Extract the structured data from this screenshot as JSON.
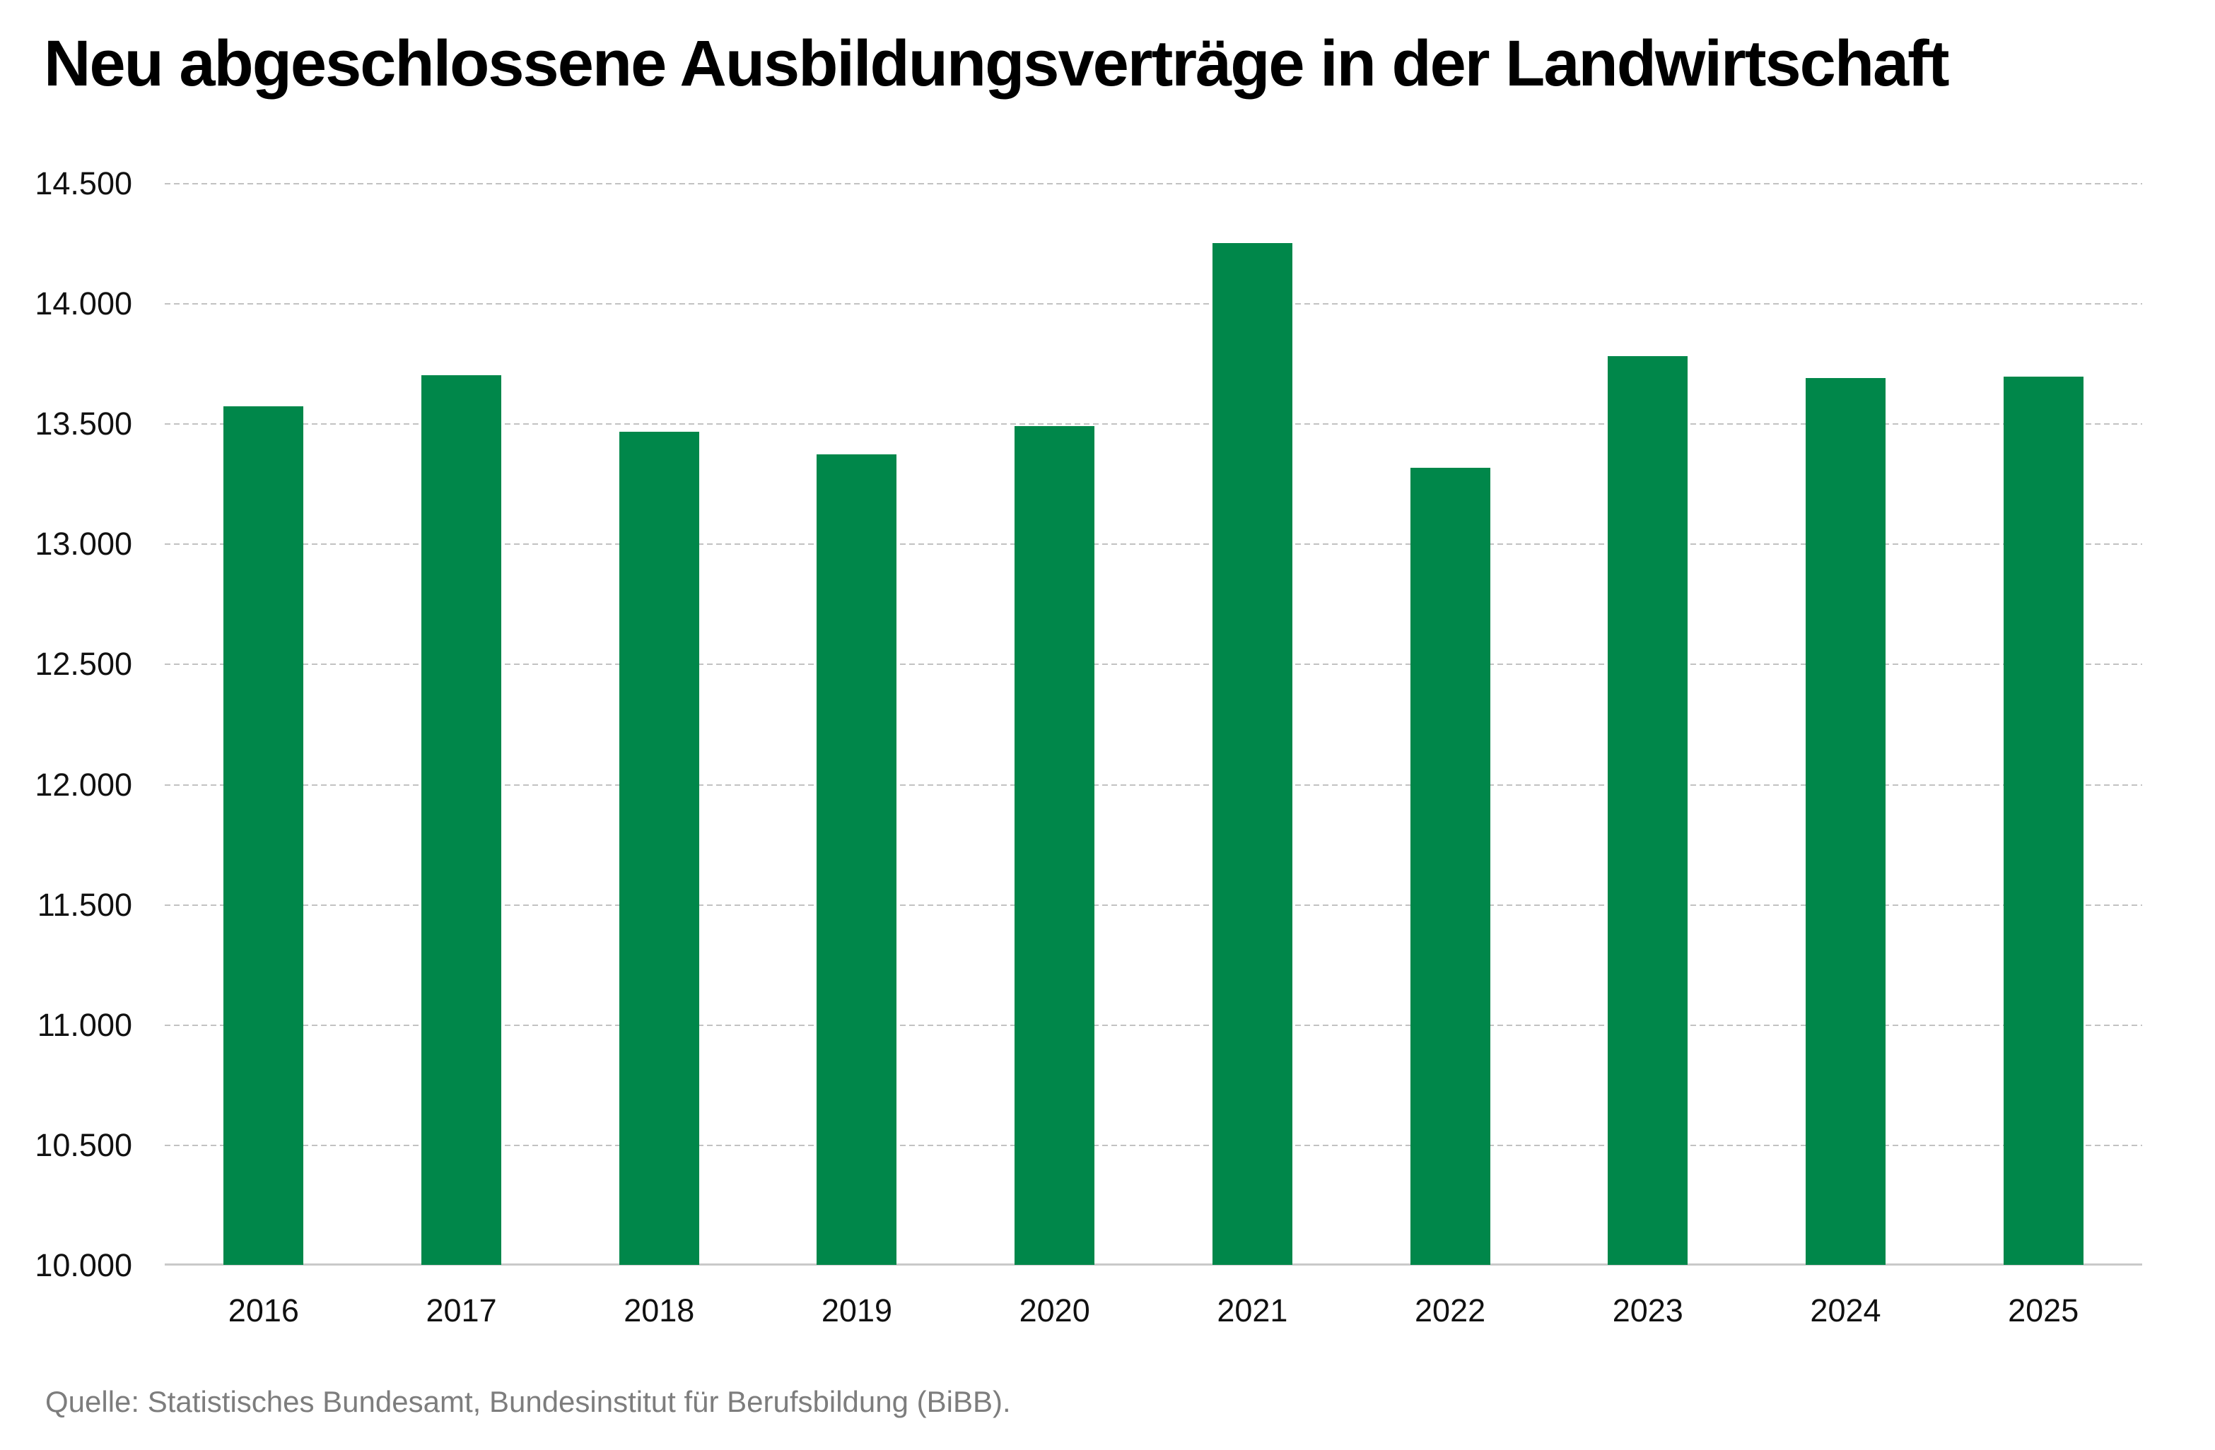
{
  "header": {
    "title": "Neu abgeschlossene Ausbildungsverträge in der Landwirtschaft"
  },
  "footer": {
    "source": "Quelle: Statistisches Bundesamt, Bundesinstitut für Berufsbildung (BiBB)."
  },
  "colors": {
    "bar": "#00874a",
    "grid_line": "#c2c2c2",
    "axis_line": "#c9c9c9",
    "tick_text": "#111111",
    "title_text": "#000000",
    "source_text": "#7d7d7d",
    "background": "#ffffff"
  },
  "chart_data": {
    "type": "bar",
    "title": "Neu abgeschlossene Ausbildungsverträge in der Landwirtschaft",
    "categories": [
      "2016",
      "2017",
      "2018",
      "2019",
      "2020",
      "2021",
      "2022",
      "2023",
      "2024",
      "2025"
    ],
    "values": [
      13570,
      13700,
      13465,
      13370,
      13490,
      14250,
      13315,
      13780,
      13690,
      13695
    ],
    "xlabel": "",
    "ylabel": "",
    "ylim": [
      10000,
      14500
    ],
    "ytick_step": 500,
    "yticks": [
      {
        "value": 14500,
        "label": "14.500"
      },
      {
        "value": 14000,
        "label": "14.000"
      },
      {
        "value": 13500,
        "label": "13.500"
      },
      {
        "value": 13000,
        "label": "13.000"
      },
      {
        "value": 12500,
        "label": "12.500"
      },
      {
        "value": 12000,
        "label": "12.000"
      },
      {
        "value": 11500,
        "label": "11.500"
      },
      {
        "value": 11000,
        "label": "11.000"
      },
      {
        "value": 10500,
        "label": "10.500"
      },
      {
        "value": 10000,
        "label": "10.000"
      }
    ],
    "grid": "horizontal-dashed",
    "legend": "none",
    "bar_color": "#00874a"
  }
}
